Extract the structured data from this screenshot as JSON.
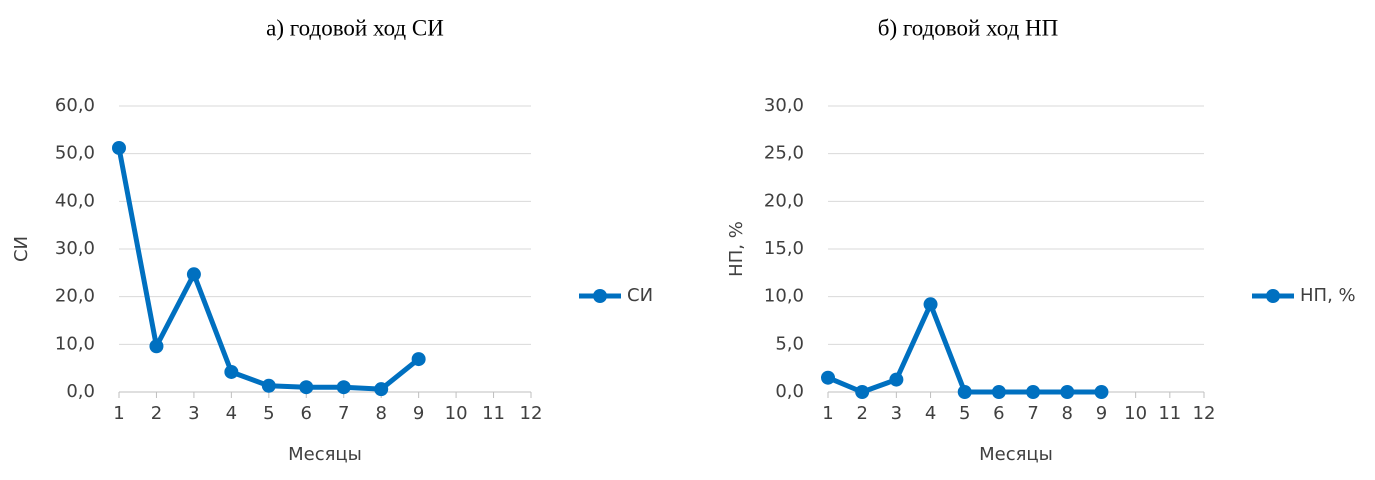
{
  "chart_data": [
    {
      "type": "line",
      "title": "а) годовой ход СИ",
      "x_label": "Месяцы",
      "y_label": "СИ",
      "x": [
        1,
        2,
        3,
        4,
        5,
        6,
        7,
        8,
        9
      ],
      "series": [
        {
          "name": "СИ",
          "color": "#0070c0",
          "values": [
            51.2,
            9.6,
            24.7,
            4.2,
            1.3,
            1.0,
            1.0,
            0.6,
            6.9
          ]
        }
      ],
      "xlim": [
        1,
        12
      ],
      "xticks": [
        1,
        2,
        3,
        4,
        5,
        6,
        7,
        8,
        9,
        10,
        11,
        12
      ],
      "ylim": [
        0,
        60
      ],
      "yticks": [
        {
          "value": 0,
          "label": "0,0"
        },
        {
          "value": 10,
          "label": "10,0"
        },
        {
          "value": 20,
          "label": "20,0"
        },
        {
          "value": 30,
          "label": "30,0"
        },
        {
          "value": 40,
          "label": "40,0"
        },
        {
          "value": 50,
          "label": "50,0"
        },
        {
          "value": 60,
          "label": "60,0"
        }
      ],
      "grid": true,
      "legend": "right"
    },
    {
      "type": "line",
      "title": "б) годовой ход НП",
      "x_label": "Месяцы",
      "y_label": "НП, %",
      "x": [
        1,
        2,
        3,
        4,
        5,
        6,
        7,
        8,
        9
      ],
      "series": [
        {
          "name": "НП, %",
          "color": "#0070c0",
          "values": [
            1.5,
            0,
            1.3,
            9.2,
            0,
            0,
            0,
            0,
            0
          ]
        }
      ],
      "xlim": [
        1,
        12
      ],
      "xticks": [
        1,
        2,
        3,
        4,
        5,
        6,
        7,
        8,
        9,
        10,
        11,
        12
      ],
      "ylim": [
        0,
        30
      ],
      "yticks": [
        {
          "value": 0,
          "label": "0,0"
        },
        {
          "value": 5,
          "label": "5,0"
        },
        {
          "value": 10,
          "label": "10,0"
        },
        {
          "value": 15,
          "label": "15,0"
        },
        {
          "value": 20,
          "label": "20,0"
        },
        {
          "value": 25,
          "label": "25,0"
        },
        {
          "value": 30,
          "label": "30,0"
        }
      ],
      "grid": true,
      "legend": "right"
    }
  ]
}
